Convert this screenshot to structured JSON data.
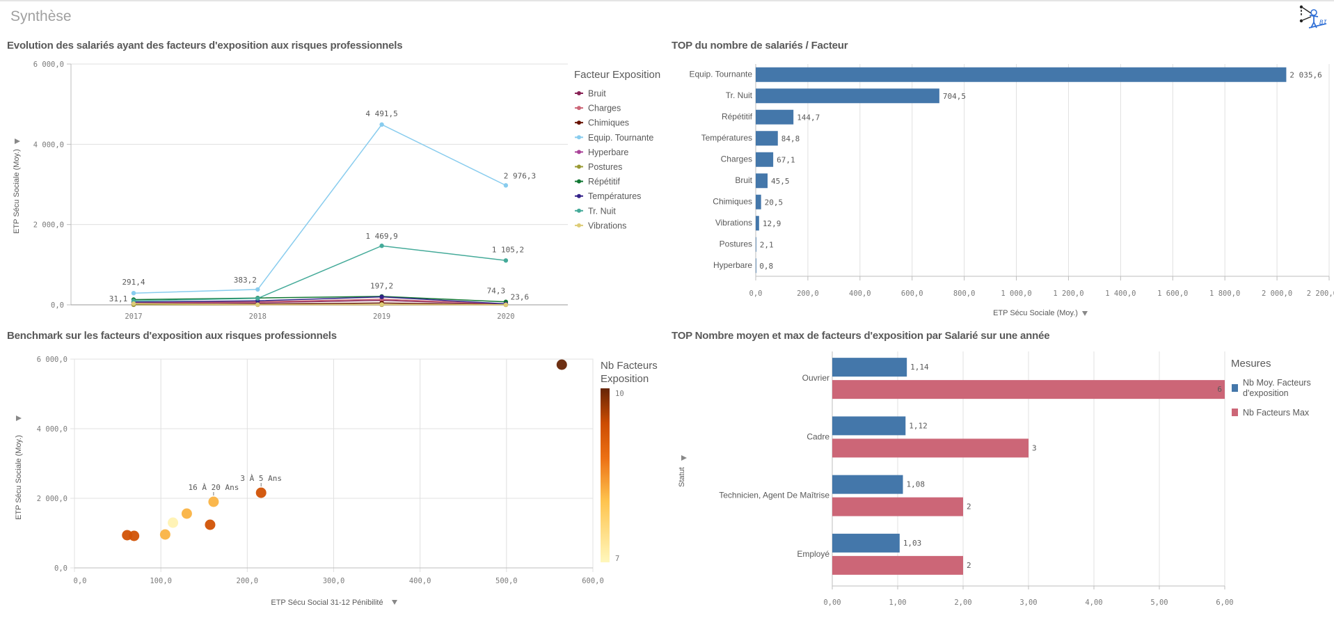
{
  "sheet": {
    "title": "Synthèse",
    "logo_icon": "stick-figure-logo-icon"
  },
  "colors": {
    "bar_blue": "#4477aa",
    "bar_red": "#cc6677",
    "grid": "#e0e0e0",
    "axis": "#bdbdbd"
  },
  "panels": {
    "line": {
      "title": "Evolution des salariés ayant des facteurs d'exposition aux risques professionnels"
    },
    "topbar": {
      "title": "TOP du nombre de salariés / Facteur"
    },
    "scatter": {
      "title": "Benchmark sur les facteurs d'exposition aux risques professionnels"
    },
    "statut": {
      "title": "TOP Nombre moyen et max de facteurs d'exposition par Salarié sur une année"
    }
  },
  "chart_data": [
    {
      "id": "line",
      "type": "line",
      "title": "Evolution des salariés ayant des facteurs d'exposition aux risques professionnels",
      "xlabel": "",
      "ylabel": "ETP Sécu Sociale (Moy.)",
      "x": [
        "2017",
        "2018",
        "2019",
        "2020"
      ],
      "ylim": [
        0,
        6000
      ],
      "yticks": [
        0,
        2000,
        4000,
        6000
      ],
      "ytick_labels": [
        "0,0",
        "2 000,0",
        "4 000,0",
        "6 000,0"
      ],
      "grid": true,
      "legend_title": "Facteur Exposition",
      "legend_position": "right",
      "series": [
        {
          "name": "Bruit",
          "color": "#882255",
          "values": [
            40,
            55,
            110,
            15
          ]
        },
        {
          "name": "Charges",
          "color": "#cc6677",
          "values": [
            60,
            75,
            140,
            20
          ]
        },
        {
          "name": "Chimiques",
          "color": "#661100",
          "values": [
            15,
            20,
            45,
            5
          ]
        },
        {
          "name": "Equip. Tournante",
          "color": "#88ccee",
          "values": [
            291.4,
            383.2,
            4491.5,
            2976.3
          ]
        },
        {
          "name": "Hyperbare",
          "color": "#aa4499",
          "values": [
            1,
            1,
            1,
            0.5
          ]
        },
        {
          "name": "Postures",
          "color": "#999933",
          "values": [
            3,
            3,
            3,
            1
          ]
        },
        {
          "name": "Répétitif",
          "color": "#117733",
          "values": [
            130,
            170,
            210,
            74.3
          ]
        },
        {
          "name": "Températures",
          "color": "#332288",
          "values": [
            70,
            100,
            197.2,
            23.6
          ]
        },
        {
          "name": "Tr. Nuit",
          "color": "#44aa99",
          "values": [
            100,
            160,
            1469.9,
            1105.2
          ]
        },
        {
          "name": "Vibrations",
          "color": "#ddcc77",
          "values": [
            31.1,
            5,
            10,
            4
          ]
        }
      ],
      "data_labels": [
        {
          "series": "Equip. Tournante",
          "x": "2017",
          "text": "291,4"
        },
        {
          "series": "Vibrations",
          "x": "2017",
          "text": "31,1"
        },
        {
          "series": "Equip. Tournante",
          "x": "2018",
          "text": "383,2"
        },
        {
          "series": "Equip. Tournante",
          "x": "2019",
          "text": "4 491,5"
        },
        {
          "series": "Tr. Nuit",
          "x": "2019",
          "text": "1 469,9"
        },
        {
          "series": "Températures",
          "x": "2019",
          "text": "197,2"
        },
        {
          "series": "Equip. Tournante",
          "x": "2020",
          "text": "2 976,3"
        },
        {
          "series": "Tr. Nuit",
          "x": "2020",
          "text": "1 105,2"
        },
        {
          "series": "Répétitif",
          "x": "2020",
          "text": "74,3"
        },
        {
          "series": "Températures",
          "x": "2020",
          "text": "23,6"
        }
      ]
    },
    {
      "id": "topbar",
      "type": "bar",
      "orientation": "horizontal",
      "title": "TOP du nombre de salariés / Facteur",
      "xlabel": "ETP Sécu Sociale (Moy.)",
      "ylabel": "",
      "categories": [
        "Equip. Tournante",
        "Tr. Nuit",
        "Répétitif",
        "Températures",
        "Charges",
        "Bruit",
        "Chimiques",
        "Vibrations",
        "Postures",
        "Hyperbare"
      ],
      "values": [
        2035.6,
        704.5,
        144.7,
        84.8,
        67.1,
        45.5,
        20.5,
        12.9,
        2.1,
        0.8
      ],
      "value_labels": [
        "2 035,6",
        "704,5",
        "144,7",
        "84,8",
        "67,1",
        "45,5",
        "20,5",
        "12,9",
        "2,1",
        "0,8"
      ],
      "xlim": [
        0,
        2200
      ],
      "xticks": [
        0,
        200,
        400,
        600,
        800,
        1000,
        1200,
        1400,
        1600,
        1800,
        2000,
        2200
      ],
      "xtick_labels": [
        "0,0",
        "200,0",
        "400,0",
        "600,0",
        "800,0",
        "1 000,0",
        "1 200,0",
        "1 400,0",
        "1 600,0",
        "1 800,0",
        "2 000,0",
        "2 200,0"
      ],
      "grid": true,
      "color": "#4477aa"
    },
    {
      "id": "scatter",
      "type": "scatter",
      "title": "Benchmark sur les facteurs d'exposition aux risques professionnels",
      "xlabel": "ETP Sécu Social 31-12 Pénibilité",
      "ylabel": "ETP Sécu Sociale (Moy.)",
      "xlim": [
        0,
        600
      ],
      "ylim": [
        0,
        6000
      ],
      "xticks": [
        0,
        100,
        200,
        300,
        400,
        500,
        600
      ],
      "xtick_labels": [
        "0,0",
        "100,0",
        "200,0",
        "300,0",
        "400,0",
        "500,0",
        "600,0"
      ],
      "yticks": [
        0,
        2000,
        4000,
        6000
      ],
      "ytick_labels": [
        "0,0",
        "2 000,0",
        "4 000,0",
        "6 000,0"
      ],
      "grid": true,
      "color_legend": {
        "title": "Nb Facteurs Exposition",
        "min": 7,
        "max": 10,
        "min_label": "7",
        "max_label": "10",
        "position": "right"
      },
      "points": [
        {
          "x": 61,
          "y": 940,
          "c": 9.3,
          "label": ""
        },
        {
          "x": 69,
          "y": 920,
          "c": 9.3,
          "label": ""
        },
        {
          "x": 105,
          "y": 960,
          "c": 8.2,
          "label": ""
        },
        {
          "x": 114,
          "y": 1300,
          "c": 7.1,
          "label": ""
        },
        {
          "x": 130,
          "y": 1560,
          "c": 8.2,
          "label": ""
        },
        {
          "x": 157,
          "y": 1240,
          "c": 9.3,
          "label": ""
        },
        {
          "x": 161,
          "y": 1900,
          "c": 8.2,
          "label": "16 À 20 Ans"
        },
        {
          "x": 216,
          "y": 2160,
          "c": 9.3,
          "label": "3 À 5 Ans"
        },
        {
          "x": 564,
          "y": 5840,
          "c": 10,
          "label": ""
        }
      ]
    },
    {
      "id": "statut",
      "type": "bar",
      "orientation": "horizontal",
      "title": "TOP Nombre moyen et max de facteurs d'exposition par Salarié sur une année",
      "xlabel": "",
      "ylabel": "Statut",
      "categories": [
        "Ouvrier",
        "Cadre",
        "Technicien, Agent De Maîtrise",
        "Employé"
      ],
      "series": [
        {
          "name": "Nb Moy. Facteurs d'exposition",
          "color": "#4477aa",
          "values": [
            1.14,
            1.12,
            1.08,
            1.03
          ],
          "labels": [
            "1,14",
            "1,12",
            "1,08",
            "1,03"
          ]
        },
        {
          "name": "Nb Facteurs Max",
          "color": "#cc6677",
          "values": [
            6,
            3,
            2,
            2
          ],
          "labels": [
            "6",
            "3",
            "2",
            "2"
          ]
        }
      ],
      "xlim": [
        0,
        6
      ],
      "xticks": [
        0,
        1,
        2,
        3,
        4,
        5,
        6
      ],
      "xtick_labels": [
        "0,00",
        "1,00",
        "2,00",
        "3,00",
        "4,00",
        "5,00",
        "6,00"
      ],
      "grid": true,
      "legend_title": "Mesures",
      "legend_position": "right"
    }
  ]
}
